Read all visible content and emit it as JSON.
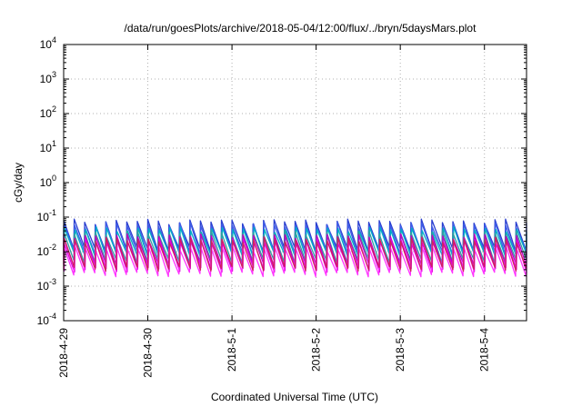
{
  "chart_data": {
    "type": "line",
    "title": "/data/run/goesPlots/archive/2018-05-04/12:00/flux/../bryn/5daysMars.plot",
    "xlabel": "Coordinated Universal Time (UTC)",
    "ylabel": "cGy/day",
    "x_scale": "time",
    "y_scale": "log",
    "xlim": [
      "2018-04-29T00:00",
      "2018-05-04T12:00"
    ],
    "ylim": [
      0.0001,
      10000
    ],
    "grid": true,
    "legend": "none",
    "x_ticks": [
      {
        "value": "2018-04-29T00:00",
        "label": "2018-4-29"
      },
      {
        "value": "2018-04-30T00:00",
        "label": "2018-4-30"
      },
      {
        "value": "2018-05-01T00:00",
        "label": "2018-5-1"
      },
      {
        "value": "2018-05-02T00:00",
        "label": "2018-5-2"
      },
      {
        "value": "2018-05-03T00:00",
        "label": "2018-5-3"
      },
      {
        "value": "2018-05-04T00:00",
        "label": "2018-5-4"
      }
    ],
    "y_ticks": [
      {
        "value": 0.0001,
        "base": "10",
        "exp": "-4"
      },
      {
        "value": 0.001,
        "base": "10",
        "exp": "-3"
      },
      {
        "value": 0.01,
        "base": "10",
        "exp": "-2"
      },
      {
        "value": 0.1,
        "base": "10",
        "exp": "-1"
      },
      {
        "value": 1,
        "base": "10",
        "exp": "0"
      },
      {
        "value": 10,
        "base": "10",
        "exp": "1"
      },
      {
        "value": 100,
        "base": "10",
        "exp": "2"
      },
      {
        "value": 1000,
        "base": "10",
        "exp": "3"
      },
      {
        "value": 10000,
        "base": "10",
        "exp": "4"
      }
    ],
    "sawtooth_period_hours": 3,
    "series": [
      {
        "color": "#2a3fd0",
        "peak": 0.075,
        "trough": 0.012
      },
      {
        "color": "#3f5ce8",
        "peak": 0.06,
        "trough": 0.009
      },
      {
        "color": "#00b0c8",
        "peak": 0.045,
        "trough": 0.0075
      },
      {
        "color": "#2fa0a0",
        "peak": 0.035,
        "trough": 0.0055
      },
      {
        "color": "#c000c0",
        "peak": 0.028,
        "trough": 0.004
      },
      {
        "color": "#e000e0",
        "peak": 0.02,
        "trough": 0.003
      },
      {
        "color": "#ff33ff",
        "peak": 0.014,
        "trough": 0.0022
      },
      {
        "color": "#d02060",
        "peak": 0.022,
        "trough": 0.0032
      }
    ]
  }
}
